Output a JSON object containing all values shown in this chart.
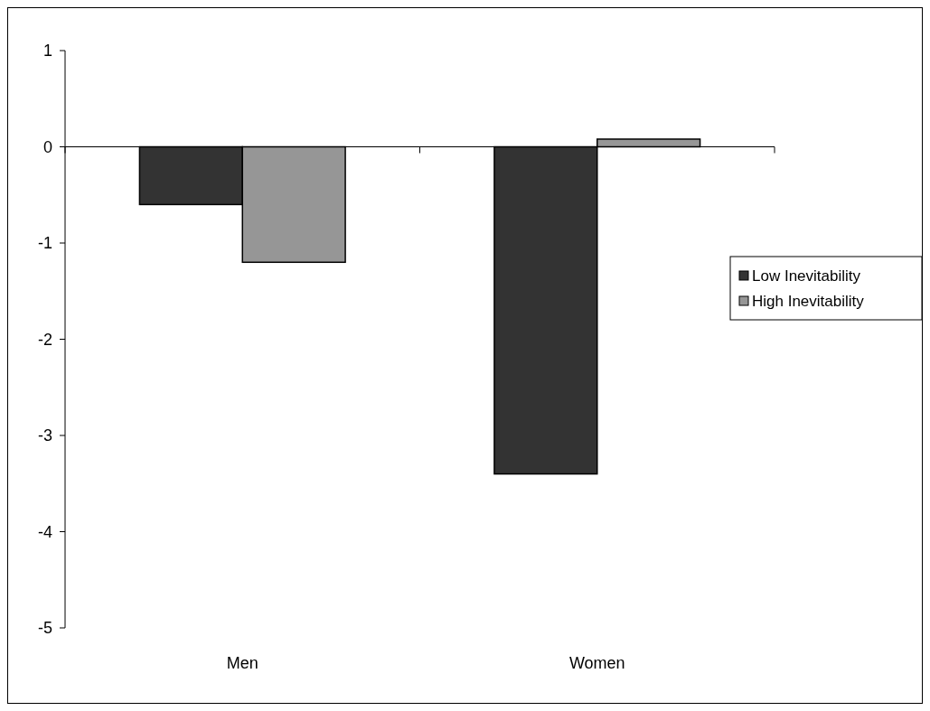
{
  "chart_data": {
    "type": "bar",
    "categories": [
      "Men",
      "Women"
    ],
    "series": [
      {
        "name": "Low Inevitability",
        "color": "#333333",
        "values": [
          -0.6,
          -3.4
        ]
      },
      {
        "name": "High Inevitability",
        "color": "#969696",
        "values": [
          -1.2,
          0.08
        ]
      }
    ],
    "ylim": [
      -5,
      1
    ],
    "yticks": [
      -5,
      -4,
      -3,
      -2,
      -1,
      0,
      1
    ],
    "legend": "right"
  }
}
